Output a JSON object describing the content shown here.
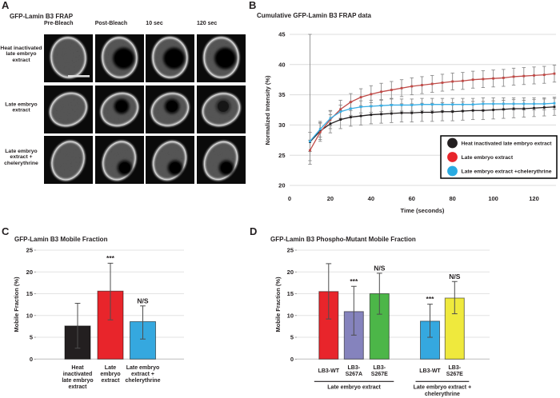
{
  "figure": {
    "background": "#ffffff",
    "text_color": "#231f20"
  },
  "panels": {
    "a": {
      "label": "A",
      "title": "GFP-Lamin B3 FRAP",
      "column_headers": [
        "Pre-Bleach",
        "Post-Bleach",
        "10 sec",
        "120 sec"
      ],
      "rows": [
        {
          "label_lines": [
            "Heat inactivated",
            "late embryo",
            "extract"
          ],
          "bleach_spot_opacity": [
            0,
            1,
            1,
            1
          ],
          "has_scale_bar": true
        },
        {
          "label_lines": [
            "Late embryo",
            "extract"
          ],
          "bleach_spot_opacity": [
            0,
            1,
            0.9,
            0.5
          ],
          "has_scale_bar": false
        },
        {
          "label_lines": [
            "Late embryo",
            "extract +",
            "chelerythrine"
          ],
          "bleach_spot_opacity": [
            0,
            0.9,
            0.95,
            0.95
          ],
          "has_scale_bar": false
        }
      ]
    },
    "b": {
      "label": "B"
    },
    "c": {
      "label": "C"
    },
    "d": {
      "label": "D"
    }
  },
  "chart_data": [
    {
      "id": "frap-timecourse",
      "type": "line",
      "title": "Cumulative GFP-Lamin B3 FRAP data",
      "xlabel": "Time (seconds)",
      "ylabel": "Normalized Intensity (%)",
      "xlim": [
        0,
        132
      ],
      "ylim": [
        20,
        45
      ],
      "xticks": [
        0,
        20,
        40,
        60,
        80,
        100,
        120
      ],
      "yticks": [
        20,
        25,
        30,
        35,
        40,
        45
      ],
      "grid": "horizontal",
      "grid_color": "#dcdcdc",
      "error_color": "#8c8c8c",
      "legend_position": "inside-bottom-right",
      "x": [
        10,
        15,
        20,
        25,
        30,
        35,
        40,
        45,
        50,
        55,
        60,
        65,
        70,
        75,
        80,
        85,
        90,
        95,
        100,
        105,
        110,
        115,
        120,
        125,
        130
      ],
      "series": [
        {
          "name": "Heat inactivated late embryo extract",
          "color": "#231f20",
          "legend_color": "#231f20",
          "values": [
            27.2,
            29.0,
            30.2,
            30.9,
            31.3,
            31.5,
            31.7,
            31.8,
            31.9,
            32.0,
            32.0,
            32.1,
            32.1,
            32.2,
            32.2,
            32.3,
            32.4,
            32.4,
            32.5,
            32.6,
            32.7,
            32.7,
            32.8,
            32.9,
            33.0
          ],
          "err": [
            1.6,
            1.4,
            1.5,
            1.5,
            1.5,
            1.5,
            1.5,
            1.5,
            1.5,
            1.5,
            1.5,
            1.5,
            1.5,
            1.5,
            1.5,
            1.5,
            1.5,
            1.5,
            1.5,
            1.5,
            1.5,
            1.4,
            1.4,
            1.4,
            1.4
          ]
        },
        {
          "name": "Late embryo extract",
          "color": "#bf4a47",
          "legend_color": "#e8252b",
          "values": [
            25.8,
            28.8,
            30.9,
            32.6,
            33.8,
            34.6,
            35.1,
            35.5,
            35.8,
            36.1,
            36.4,
            36.6,
            36.8,
            37.0,
            37.2,
            37.3,
            37.5,
            37.6,
            37.7,
            37.8,
            38.0,
            38.1,
            38.2,
            38.3,
            38.5
          ],
          "err": [
            1.7,
            1.5,
            1.5,
            1.5,
            1.4,
            1.4,
            1.4,
            1.4,
            1.4,
            1.4,
            1.4,
            1.4,
            1.4,
            1.4,
            1.4,
            1.4,
            1.4,
            1.4,
            1.4,
            1.4,
            1.4,
            1.4,
            1.4,
            1.4,
            1.4
          ]
        },
        {
          "name": "Late embryo extract +chelerythrine",
          "color": "#3aaee4",
          "legend_color": "#29abe2",
          "values": [
            27.3,
            29.3,
            31.1,
            32.2,
            32.7,
            33.0,
            33.1,
            33.2,
            33.3,
            33.3,
            33.3,
            33.4,
            33.4,
            33.4,
            33.4,
            33.4,
            33.4,
            33.5,
            33.5,
            33.5,
            33.5,
            33.5,
            33.5,
            33.5,
            33.6
          ],
          "err": [
            17.7,
            1.3,
            1.2,
            1.1,
            1.1,
            1.0,
            1.0,
            1.0,
            1.0,
            1.0,
            1.0,
            1.0,
            1.0,
            1.0,
            1.0,
            1.0,
            1.0,
            1.0,
            1.0,
            1.0,
            1.0,
            1.0,
            1.0,
            1.0,
            1.0
          ],
          "err0_down": 3.8
        }
      ]
    },
    {
      "id": "mobile-fraction",
      "type": "bar",
      "title": "GFP-Lamin B3 Mobile Fraction",
      "xlabel": "",
      "ylabel": "Mobile Fraction (%)",
      "ylim": [
        0,
        25
      ],
      "yticks": [
        0,
        5,
        10,
        15,
        20,
        25
      ],
      "categories": [
        [
          "Heat",
          "inactivated",
          "late embryo",
          "extract"
        ],
        [
          "Late",
          "embryo",
          "extract"
        ],
        [
          "Late embryo",
          "extract +",
          "chelerythrine"
        ]
      ],
      "values": [
        7.6,
        15.6,
        8.6
      ],
      "err_low": [
        2.5,
        9.0,
        4.6
      ],
      "err_high": [
        12.8,
        22.0,
        12.2
      ],
      "colors": [
        "#231f20",
        "#e8252b",
        "#35a8df"
      ],
      "annotations": [
        "",
        "***",
        "N/S"
      ]
    },
    {
      "id": "phospho-mutant-mobile-fraction",
      "type": "bar",
      "title": "GFP-Lamin B3 Phospho-Mutant Mobile Fraction",
      "xlabel": "",
      "ylabel": "Mobile Fraction (%)",
      "ylim": [
        0,
        25
      ],
      "yticks": [
        0,
        5,
        10,
        15,
        20,
        25
      ],
      "categories": [
        [
          "LB3-WT"
        ],
        [
          "LB3-",
          "S267A"
        ],
        [
          "LB3-",
          "S267E"
        ],
        [
          "LB3-WT"
        ],
        [
          "LB3-",
          "S267E"
        ]
      ],
      "values": [
        15.5,
        10.9,
        15.0,
        8.7,
        14.0
      ],
      "err_low": [
        9.2,
        5.5,
        10.3,
        5.0,
        10.4
      ],
      "err_high": [
        21.9,
        16.7,
        19.7,
        12.6,
        17.8
      ],
      "colors": [
        "#e8252b",
        "#8583bd",
        "#4cb648",
        "#35a8df",
        "#efe93d"
      ],
      "annotations": [
        "",
        "***",
        "N/S",
        "***",
        "N/S"
      ],
      "groups": [
        {
          "label_lines": [
            "Late embryo extract"
          ],
          "span": [
            0,
            2
          ]
        },
        {
          "label_lines": [
            "Late embryo extract +",
            "chelerythrine"
          ],
          "span": [
            3,
            4
          ]
        }
      ]
    }
  ]
}
